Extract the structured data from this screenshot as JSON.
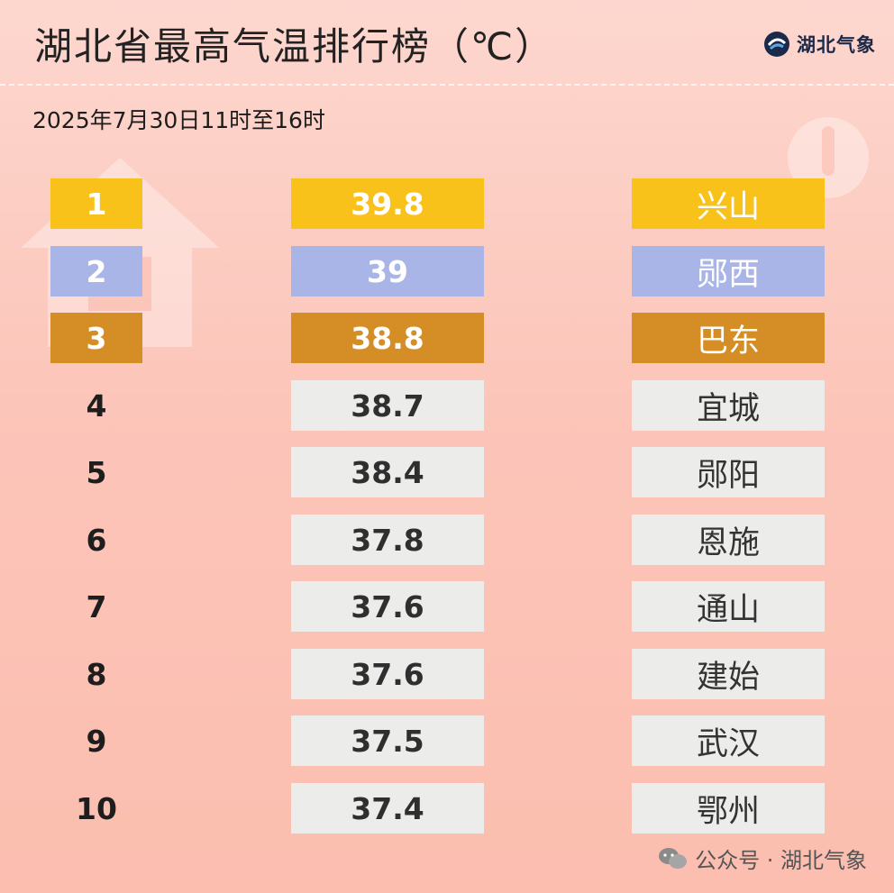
{
  "header": {
    "title": "湖北省最高气温排行榜（℃）",
    "logo_text": "湖北气象",
    "subtitle": "2025年7月30日11时至16时"
  },
  "rows": [
    {
      "rank": "1",
      "temp": "39.8",
      "station": "兴山",
      "style": "gold"
    },
    {
      "rank": "2",
      "temp": "39",
      "station": "郧西",
      "style": "blue"
    },
    {
      "rank": "3",
      "temp": "38.8",
      "station": "巴东",
      "style": "bronze"
    },
    {
      "rank": "4",
      "temp": "38.7",
      "station": "宜城",
      "style": "plain"
    },
    {
      "rank": "5",
      "temp": "38.4",
      "station": "郧阳",
      "style": "plain"
    },
    {
      "rank": "6",
      "temp": "37.8",
      "station": "恩施",
      "style": "plain"
    },
    {
      "rank": "7",
      "temp": "37.6",
      "station": "通山",
      "style": "plain"
    },
    {
      "rank": "8",
      "temp": "37.6",
      "station": "建始",
      "style": "plain"
    },
    {
      "rank": "9",
      "temp": "37.5",
      "station": "武汉",
      "style": "plain"
    },
    {
      "rank": "10",
      "temp": "37.4",
      "station": "鄂州",
      "style": "plain"
    }
  ],
  "footer": {
    "text": "公众号 · 湖北气象"
  },
  "colors": {
    "gold": "#f8c21a",
    "blue": "#a8b5e6",
    "bronze": "#d58e25",
    "plain": "#ececea"
  }
}
